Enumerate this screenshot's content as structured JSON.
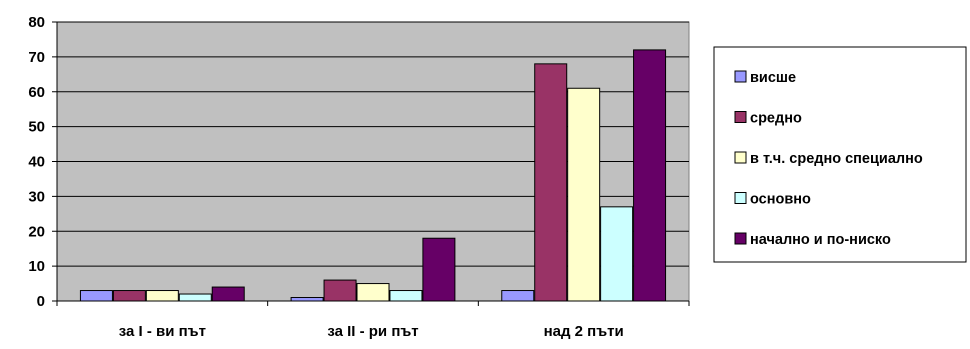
{
  "chart_data": {
    "type": "bar",
    "categories": [
      "за I - ви път",
      "за II - ри път",
      "над 2 пъти"
    ],
    "ylim": [
      0,
      80
    ],
    "yticks": [
      0,
      10,
      20,
      30,
      40,
      50,
      60,
      70,
      80
    ],
    "grid": true,
    "plot_background": "#c0c0c0",
    "legend_position": "right",
    "series": [
      {
        "name": "висше",
        "color": "#9999ff",
        "values": [
          3,
          1,
          3
        ]
      },
      {
        "name": "средно",
        "color": "#993366",
        "values": [
          3,
          6,
          68
        ]
      },
      {
        "name": "в т.ч. средно специално",
        "color": "#ffffcc",
        "values": [
          3,
          5,
          61
        ]
      },
      {
        "name": "основно",
        "color": "#ccffff",
        "values": [
          2,
          3,
          27
        ]
      },
      {
        "name": "начално и по-ниско",
        "color": "#660066",
        "values": [
          4,
          18,
          72
        ]
      }
    ]
  }
}
